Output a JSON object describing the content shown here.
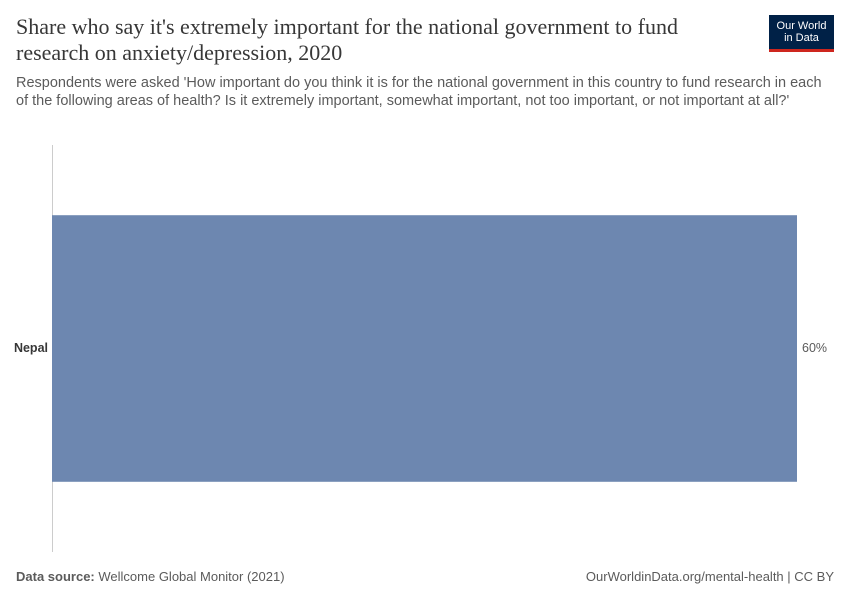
{
  "chart_data": {
    "type": "bar",
    "orientation": "horizontal",
    "title": "Share who say it's extremely important for the national government to fund research on anxiety/depression, 2020",
    "subtitle": "Respondents were asked 'How important do you think it is for the national government in this country to fund research in each of the following areas of health? Is it extremely important, somewhat important, not too important, or not important at all?'",
    "categories": [
      "Nepal"
    ],
    "values": [
      60
    ],
    "value_labels": [
      "60%"
    ],
    "color": "#6d87b0"
  },
  "footer": {
    "source_label": "Data source:",
    "source": "Wellcome Global Monitor (2021)",
    "credit": "OurWorldinData.org/mental-health | CC BY"
  },
  "logo": {
    "line1": "Our World",
    "line2": "in Data"
  }
}
